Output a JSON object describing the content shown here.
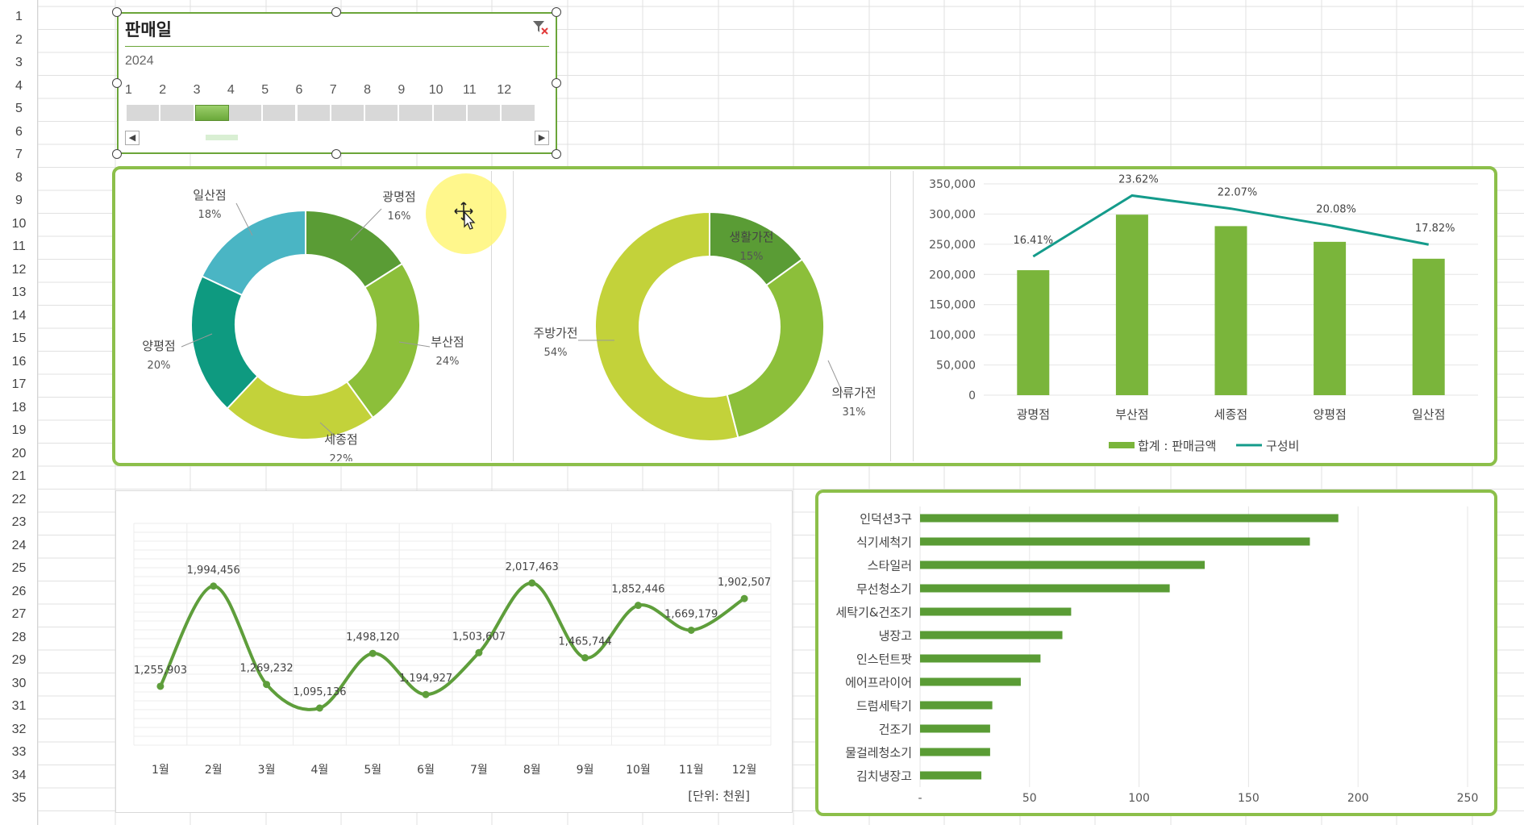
{
  "colors": {
    "accent_green": "#8cbf4a",
    "dark_green": "#5a9c35",
    "bar_green": "#7ab53b",
    "teal": "#0e9a80",
    "yellow_green": "#c3d23a",
    "light_teal": "#4ab5c4",
    "line_teal": "#149b8b",
    "line_green": "#5e9e3b"
  },
  "row_numbers": [
    "1",
    "2",
    "3",
    "4",
    "5",
    "6",
    "7",
    "8",
    "9",
    "10",
    "11",
    "12",
    "13",
    "14",
    "15",
    "16",
    "17",
    "18",
    "19",
    "20",
    "21",
    "22",
    "23",
    "24",
    "25",
    "26",
    "27",
    "28",
    "29",
    "30",
    "31",
    "32",
    "33",
    "34",
    "35"
  ],
  "slicer": {
    "title": "판매일",
    "year": "2024",
    "months": [
      "1",
      "2",
      "3",
      "4",
      "5",
      "6",
      "7",
      "8",
      "9",
      "10",
      "11",
      "12"
    ],
    "selected_month": 3,
    "clear_icon": "filter-clear-icon"
  },
  "charts": {
    "store_donut": {
      "type": "pie",
      "donut": true,
      "slices": [
        {
          "name": "광명점",
          "pct": "16%",
          "value": 16,
          "color": "#5a9c35"
        },
        {
          "name": "부산점",
          "pct": "24%",
          "value": 24,
          "color": "#8cbf3a"
        },
        {
          "name": "세종점",
          "pct": "22%",
          "value": 22,
          "color": "#c3d23a"
        },
        {
          "name": "양평점",
          "pct": "20%",
          "value": 20,
          "color": "#0e9a80"
        },
        {
          "name": "일산점",
          "pct": "18%",
          "value": 18,
          "color": "#4ab5c4"
        }
      ]
    },
    "category_donut": {
      "type": "pie",
      "donut": true,
      "slices": [
        {
          "name": "생활가전",
          "pct": "15%",
          "value": 15,
          "color": "#5a9c35"
        },
        {
          "name": "의류가전",
          "pct": "31%",
          "value": 31,
          "color": "#8cbf3a"
        },
        {
          "name": "주방가전",
          "pct": "54%",
          "value": 54,
          "color": "#c3d23a"
        }
      ]
    },
    "combo": {
      "type": "bar",
      "categories": [
        "광명점",
        "부산점",
        "세종점",
        "양평점",
        "일산점"
      ],
      "bar_series": {
        "name": "합계 : 판매금액",
        "values": [
          207000,
          299000,
          280000,
          254000,
          226000
        ]
      },
      "line_series": {
        "name": "구성비",
        "values": [
          16.41,
          23.62,
          22.07,
          20.08,
          17.82
        ],
        "labels": [
          "16.41%",
          "23.62%",
          "22.07%",
          "20.08%",
          "17.82%"
        ]
      },
      "y_ticks": [
        "350,000",
        "300,000",
        "250,000",
        "200,000",
        "150,000",
        "100,000",
        "50,000",
        "0"
      ],
      "ylim": [
        0,
        350000
      ]
    },
    "monthly_line": {
      "type": "line",
      "categories": [
        "1월",
        "2월",
        "3월",
        "4월",
        "5월",
        "6월",
        "7월",
        "8월",
        "9월",
        "10월",
        "11월",
        "12월"
      ],
      "values": [
        1255903,
        1994456,
        1269232,
        1095136,
        1498120,
        1194927,
        1503607,
        2017463,
        1465744,
        1852446,
        1669179,
        1902507
      ],
      "labels": [
        "1,255,903",
        "1,994,456",
        "1,269,232",
        "1,095,136",
        "1,498,120",
        "1,194,927",
        "1,503,607",
        "2,017,463",
        "1,465,744",
        "1,852,446",
        "1,669,179",
        "1,902,507"
      ],
      "unit_note": "[단위: 천원]"
    },
    "product_bar": {
      "type": "bar",
      "orientation": "horizontal",
      "categories": [
        "인덕션3구",
        "식기세척기",
        "스타일러",
        "무선청소기",
        "세탁기&건조기",
        "냉장고",
        "인스턴트팟",
        "에어프라이어",
        "드럼세탁기",
        "건조기",
        "물걸레청소기",
        "김치냉장고"
      ],
      "values": [
        191,
        178,
        130,
        114,
        69,
        65,
        55,
        46,
        33,
        32,
        32,
        28
      ],
      "x_ticks": [
        "-",
        "50",
        "100",
        "150",
        "200",
        "250"
      ],
      "xlim": [
        0,
        250
      ]
    }
  }
}
